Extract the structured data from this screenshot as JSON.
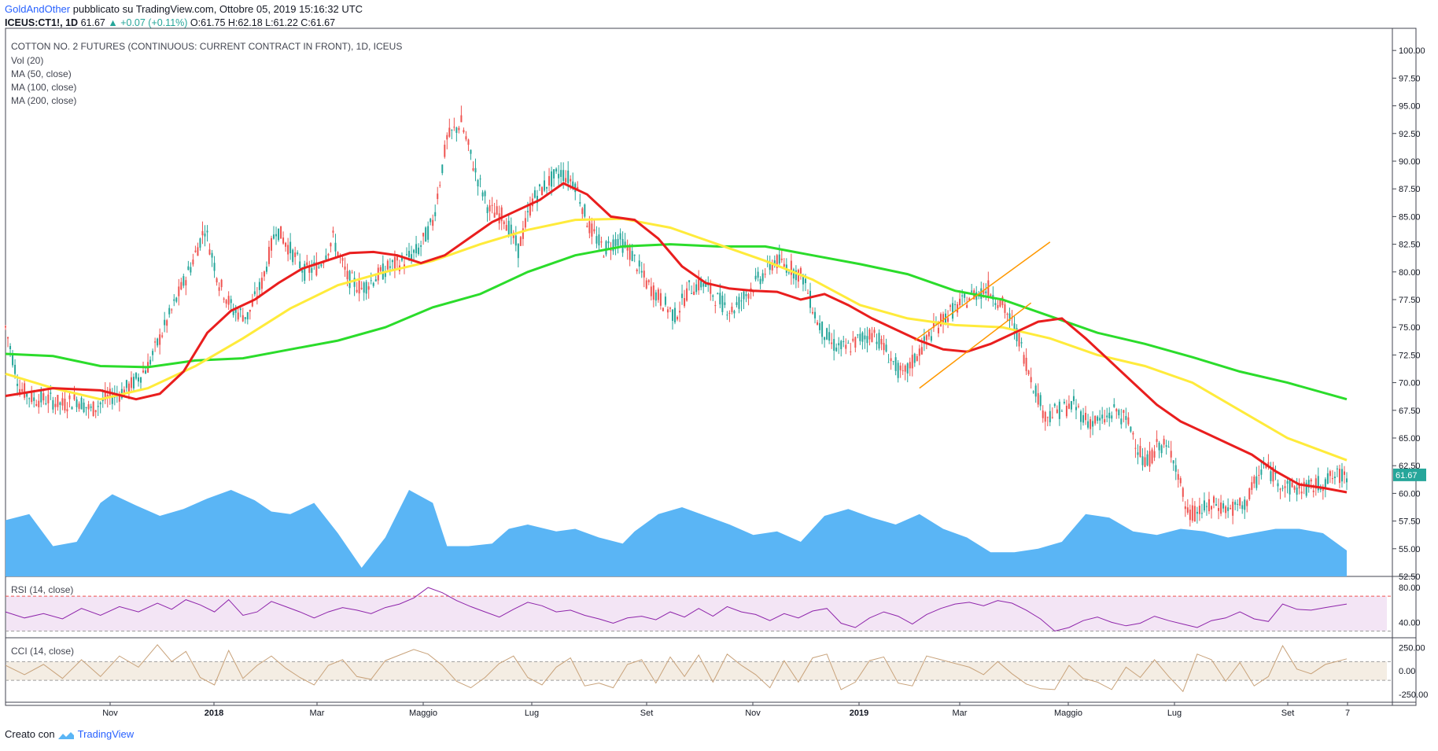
{
  "header": {
    "author": "GoldAndOther",
    "published": "pubblicato su TradingView.com, Ottobre 05, 2019 15:16:32 UTC",
    "symbol": "ICEUS:CT1!, 1D",
    "last": "61.67",
    "change": "+0.07 (+0.11%)",
    "ohlc": "O:61.75 H:62.18 L:61.22 C:61.67"
  },
  "legend": {
    "title": "COTTON NO. 2 FUTURES (CONTINUOUS: CURRENT CONTRACT IN FRONT), 1D, ICEUS",
    "lines": [
      "Vol (20)",
      "MA (50, close)",
      "MA (100, close)",
      "MA (200, close)"
    ]
  },
  "footer": {
    "prefix": "Creato con",
    "brand": "TradingView"
  },
  "colors": {
    "up": "#26a69a",
    "down": "#ef5350",
    "ma50": "#e91e1e",
    "ma100": "#ffeb3b",
    "ma200": "#2bdc2b",
    "volume": "#5ab5f5",
    "channel": "#ff9800",
    "rsi": "#8e24aa",
    "cci": "#c8a27a"
  },
  "chart_data": [
    {
      "type": "candlestick",
      "title": "COTTON NO. 2 FUTURES (CONTINUOUS: CURRENT CONTRACT IN FRONT), 1D, ICEUS",
      "ylim": [
        52.5,
        102
      ],
      "y_ticks": [
        "100.00",
        "97.50",
        "95.00",
        "92.50",
        "90.00",
        "87.50",
        "85.00",
        "82.50",
        "80.00",
        "77.50",
        "75.00",
        "72.50",
        "70.00",
        "67.50",
        "65.00",
        "62.50",
        "60.00",
        "57.50",
        "55.00",
        "52.50"
      ],
      "x_ticks": [
        "Nov",
        "2018",
        "Mar",
        "Maggio",
        "Lug",
        "Set",
        "Nov",
        "2019",
        "Mar",
        "Maggio",
        "Lug",
        "Set",
        "7"
      ],
      "last_price_label": "61.67",
      "close_series": {
        "t": [
          0,
          6,
          12,
          18,
          24,
          30,
          36,
          42,
          48,
          54,
          60,
          66,
          72,
          78,
          84,
          90,
          96,
          102,
          108,
          114,
          120,
          126,
          132,
          138,
          144,
          150,
          156,
          162,
          168,
          174,
          180,
          186,
          192,
          198,
          204,
          210,
          216,
          222,
          228,
          234,
          240,
          246,
          252,
          258,
          264,
          270,
          276,
          282,
          288,
          294,
          300,
          306,
          312,
          318,
          324,
          330,
          336,
          342,
          348,
          354,
          360,
          366,
          372,
          378,
          384,
          390,
          396,
          402,
          408,
          414,
          420,
          426,
          432,
          438,
          444,
          450,
          456,
          462,
          468,
          474,
          480,
          486,
          492,
          498,
          504,
          510,
          516,
          522,
          530,
          540,
          550,
          560,
          565
        ],
        "close": [
          75.0,
          69.5,
          68.5,
          68.5,
          68.0,
          68.5,
          67.5,
          68.5,
          69.0,
          70.0,
          71.5,
          74.5,
          77.5,
          80.5,
          84.0,
          79.0,
          76.5,
          76.0,
          79.0,
          84.0,
          82.0,
          80.0,
          80.5,
          83.0,
          79.5,
          78.5,
          79.5,
          80.5,
          81.0,
          82.0,
          84.5,
          92.0,
          93.5,
          89.0,
          85.5,
          85.0,
          82.0,
          86.5,
          88.0,
          89.0,
          88.0,
          84.0,
          82.0,
          83.0,
          81.5,
          79.0,
          77.5,
          76.0,
          78.5,
          79.0,
          77.5,
          76.5,
          78.0,
          79.5,
          81.0,
          80.5,
          79.5,
          75.5,
          73.5,
          73.0,
          74.0,
          74.5,
          72.5,
          70.5,
          72.5,
          74.5,
          76.0,
          77.0,
          78.0,
          78.5,
          77.0,
          74.5,
          70.5,
          67.0,
          67.5,
          68.0,
          66.5,
          66.5,
          67.5,
          66.0,
          62.5,
          64.5,
          63.5,
          58.0,
          58.5,
          59.0,
          58.5,
          59.0,
          62.5,
          60.5,
          60.5,
          61.5,
          61.67
        ]
      },
      "ma50": {
        "t": [
          0,
          20,
          40,
          55,
          65,
          75,
          85,
          95,
          105,
          115,
          125,
          135,
          145,
          155,
          165,
          175,
          185,
          195,
          205,
          215,
          225,
          235,
          245,
          255,
          265,
          275,
          285,
          295,
          305,
          315,
          325,
          335,
          345,
          355,
          365,
          375,
          385,
          395,
          405,
          415,
          425,
          435,
          445,
          455,
          465,
          475,
          485,
          495,
          505,
          515,
          525,
          535,
          545,
          555,
          565
        ],
        "v": [
          68.8,
          69.5,
          69.3,
          68.5,
          69.0,
          71.0,
          74.5,
          76.5,
          77.5,
          79.0,
          80.3,
          81.0,
          81.7,
          81.8,
          81.5,
          80.8,
          81.5,
          83.0,
          84.5,
          85.5,
          86.5,
          88.0,
          87.0,
          85.0,
          84.7,
          83.0,
          80.5,
          79.0,
          78.5,
          78.3,
          78.2,
          77.5,
          78.0,
          77.0,
          75.8,
          74.8,
          73.8,
          73.0,
          72.8,
          73.5,
          74.5,
          75.5,
          75.8,
          74.0,
          72.0,
          70.0,
          68.0,
          66.5,
          65.5,
          64.5,
          63.5,
          62.0,
          60.8,
          60.5,
          60.1
        ]
      },
      "ma100": {
        "t": [
          0,
          20,
          40,
          60,
          80,
          100,
          120,
          140,
          160,
          180,
          200,
          220,
          240,
          260,
          280,
          300,
          320,
          340,
          360,
          380,
          400,
          420,
          440,
          460,
          480,
          500,
          520,
          540,
          565
        ],
        "v": [
          70.8,
          69.5,
          68.5,
          69.5,
          71.5,
          74.0,
          76.7,
          78.8,
          80.0,
          81.0,
          82.5,
          83.8,
          84.7,
          84.8,
          84.0,
          82.5,
          81.0,
          79.3,
          77.0,
          75.8,
          75.2,
          75.0,
          74.0,
          72.5,
          71.5,
          70.0,
          67.5,
          65.0,
          63.0
        ]
      },
      "ma200": {
        "t": [
          0,
          20,
          40,
          60,
          80,
          100,
          120,
          140,
          160,
          180,
          200,
          220,
          240,
          260,
          280,
          300,
          320,
          340,
          360,
          380,
          400,
          420,
          440,
          460,
          480,
          500,
          520,
          540,
          565
        ],
        "v": [
          72.6,
          72.4,
          71.5,
          71.4,
          72.0,
          72.2,
          73.0,
          73.8,
          75.0,
          76.8,
          78.0,
          80.0,
          81.5,
          82.3,
          82.5,
          82.3,
          82.3,
          81.5,
          80.7,
          79.8,
          78.3,
          77.5,
          76.0,
          74.5,
          73.5,
          72.3,
          71.0,
          70.0,
          68.5
        ]
      },
      "channel": [
        {
          "t1": 383,
          "v1": 73.8,
          "t2": 440,
          "v2": 82.7
        },
        {
          "t1": 385,
          "v1": 69.5,
          "t2": 432,
          "v2": 77.2
        }
      ]
    },
    {
      "type": "area",
      "title": "Vol (20)",
      "t": [
        0,
        10,
        20,
        30,
        40,
        45,
        55,
        65,
        75,
        85,
        95,
        105,
        112,
        120,
        130,
        140,
        150,
        160,
        170,
        180,
        186,
        195,
        205,
        212,
        220,
        232,
        240,
        250,
        260,
        265,
        275,
        285,
        295,
        305,
        315,
        325,
        335,
        345,
        355,
        365,
        375,
        385,
        395,
        405,
        415,
        425,
        435,
        445,
        455,
        465,
        475,
        485,
        495,
        505,
        515,
        525,
        535,
        545,
        555,
        565
      ],
      "v": [
        0.65,
        0.72,
        0.35,
        0.4,
        0.85,
        0.95,
        0.82,
        0.7,
        0.78,
        0.9,
        1.0,
        0.88,
        0.75,
        0.72,
        0.85,
        0.5,
        0.1,
        0.45,
        1.0,
        0.85,
        0.35,
        0.35,
        0.38,
        0.55,
        0.6,
        0.52,
        0.55,
        0.45,
        0.38,
        0.52,
        0.72,
        0.8,
        0.7,
        0.6,
        0.48,
        0.52,
        0.4,
        0.7,
        0.78,
        0.68,
        0.6,
        0.72,
        0.55,
        0.45,
        0.28,
        0.28,
        0.32,
        0.4,
        0.72,
        0.68,
        0.52,
        0.48,
        0.55,
        0.52,
        0.45,
        0.5,
        0.55,
        0.55,
        0.5,
        0.3
      ]
    },
    {
      "type": "line",
      "title": "RSI (14, close)",
      "ylim": [
        25,
        90
      ],
      "y_ticks": [
        "80.00",
        "40.00"
      ],
      "bands": [
        70,
        30
      ],
      "t": [
        0,
        8,
        16,
        24,
        32,
        40,
        48,
        56,
        64,
        70,
        76,
        82,
        88,
        94,
        100,
        106,
        112,
        118,
        124,
        130,
        136,
        142,
        148,
        154,
        160,
        166,
        172,
        178,
        184,
        190,
        196,
        202,
        208,
        214,
        220,
        226,
        232,
        238,
        244,
        250,
        256,
        262,
        268,
        274,
        280,
        286,
        292,
        298,
        304,
        310,
        316,
        322,
        328,
        334,
        340,
        346,
        352,
        358,
        364,
        370,
        376,
        382,
        388,
        394,
        400,
        406,
        412,
        418,
        424,
        430,
        436,
        442,
        448,
        454,
        460,
        466,
        472,
        478,
        484,
        490,
        496,
        502,
        508,
        514,
        520,
        526,
        532,
        538,
        544,
        550,
        556,
        565
      ],
      "v": [
        52,
        45,
        50,
        44,
        56,
        48,
        58,
        52,
        62,
        55,
        66,
        60,
        52,
        66,
        48,
        52,
        64,
        58,
        52,
        45,
        52,
        57,
        54,
        50,
        57,
        61,
        68,
        80,
        74,
        65,
        58,
        52,
        46,
        55,
        63,
        59,
        52,
        54,
        48,
        44,
        39,
        45,
        47,
        43,
        52,
        46,
        56,
        47,
        58,
        52,
        49,
        42,
        50,
        45,
        53,
        56,
        39,
        34,
        45,
        52,
        47,
        38,
        49,
        56,
        61,
        63,
        59,
        65,
        62,
        54,
        44,
        30,
        34,
        42,
        46,
        40,
        36,
        39,
        47,
        42,
        38,
        34,
        42,
        45,
        52,
        44,
        41,
        61,
        55,
        54,
        57,
        61
      ]
    },
    {
      "type": "line",
      "title": "CCI (14, close)",
      "ylim": [
        -310,
        330
      ],
      "y_ticks": [
        "250.00",
        "0.00",
        "-250.00"
      ],
      "bands": [
        100,
        -100
      ],
      "t": [
        0,
        8,
        16,
        24,
        32,
        40,
        48,
        56,
        64,
        70,
        76,
        82,
        88,
        94,
        100,
        106,
        112,
        118,
        124,
        130,
        136,
        142,
        148,
        154,
        160,
        166,
        172,
        178,
        184,
        190,
        196,
        202,
        208,
        214,
        220,
        226,
        232,
        238,
        244,
        250,
        256,
        262,
        268,
        274,
        280,
        286,
        292,
        298,
        304,
        310,
        316,
        322,
        328,
        334,
        340,
        346,
        352,
        358,
        364,
        370,
        376,
        382,
        388,
        394,
        400,
        406,
        412,
        418,
        424,
        430,
        436,
        442,
        448,
        454,
        460,
        466,
        472,
        478,
        484,
        490,
        496,
        502,
        508,
        514,
        520,
        526,
        532,
        538,
        544,
        550,
        556,
        565
      ],
      "v": [
        60,
        -40,
        70,
        -80,
        120,
        -60,
        160,
        40,
        280,
        100,
        210,
        -70,
        -150,
        220,
        -80,
        60,
        160,
        30,
        -70,
        -150,
        60,
        120,
        -60,
        -90,
        110,
        170,
        230,
        180,
        60,
        -110,
        -180,
        -70,
        80,
        160,
        -70,
        -150,
        40,
        140,
        -160,
        -130,
        -180,
        70,
        120,
        -130,
        150,
        -60,
        170,
        -120,
        180,
        60,
        -40,
        -180,
        110,
        -120,
        140,
        180,
        -200,
        -120,
        110,
        150,
        -130,
        -160,
        160,
        120,
        80,
        40,
        -40,
        100,
        -30,
        -140,
        -190,
        -200,
        60,
        -80,
        -120,
        -200,
        40,
        -70,
        120,
        -60,
        -220,
        180,
        120,
        -110,
        90,
        -160,
        -60,
        270,
        20,
        -30,
        70,
        130
      ]
    }
  ]
}
